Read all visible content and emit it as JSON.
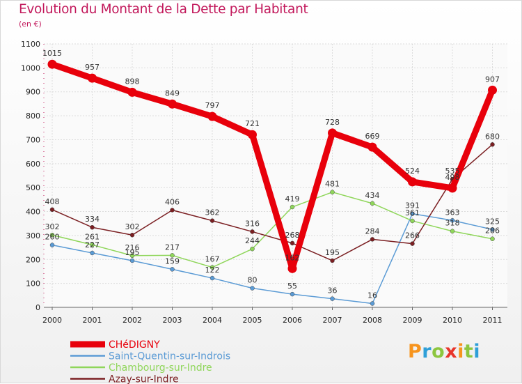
{
  "title": "Evolution du Montant de la Dette par Habitant",
  "subtitle": "(en €)",
  "brand": {
    "text": "Proxiti",
    "letter_colors": [
      "#f7941d",
      "#2e9fd8",
      "#8dc63f",
      "#e8352b",
      "#f7941d",
      "#8dc63f",
      "#2e9fd8"
    ]
  },
  "chart_data": {
    "type": "line",
    "title": "Evolution du Montant de la Dette par Habitant",
    "ylabel": "(en €)",
    "ylim": [
      0,
      1100
    ],
    "yticks": [
      0,
      100,
      200,
      300,
      400,
      500,
      600,
      700,
      800,
      900,
      1000,
      1100
    ],
    "x": [
      "2000",
      "2001",
      "2002",
      "2003",
      "2004",
      "2005",
      "2006",
      "2007",
      "2008",
      "2009",
      "2010",
      "2011"
    ],
    "grid": true,
    "legend_position": "bottom-left",
    "series": [
      {
        "name": "CHéDIGNY",
        "color": "#e8000b",
        "emphasis": true,
        "values": [
          1015,
          957,
          898,
          849,
          797,
          721,
          162,
          728,
          669,
          524,
          498,
          907
        ],
        "labels": [
          "1015",
          "957",
          "898",
          "849",
          "797",
          "721",
          "162",
          "728",
          "669",
          "524",
          "498",
          "907"
        ]
      },
      {
        "name": "Saint-Quentin-sur-Indrois",
        "color": "#5b9bd5",
        "values": [
          260,
          227,
          195,
          159,
          122,
          80,
          55,
          36,
          16,
          391,
          363,
          325
        ],
        "labels": [
          "260",
          "227",
          "195",
          "159",
          "122",
          "80",
          "55",
          "36",
          "16",
          "391",
          "363",
          "325"
        ]
      },
      {
        "name": "Chambourg-sur-Indre",
        "color": "#8fd65a",
        "values": [
          302,
          261,
          216,
          217,
          167,
          244,
          419,
          481,
          434,
          361,
          318,
          286
        ],
        "labels": [
          "302",
          "261",
          "216",
          "217",
          "167",
          "244",
          "419",
          "481",
          "434",
          "361",
          "318",
          "286"
        ]
      },
      {
        "name": "Azay-sur-Indre",
        "color": "#7b1f22",
        "values": [
          408,
          334,
          302,
          406,
          362,
          316,
          268,
          195,
          284,
          266,
          535,
          680
        ],
        "labels": [
          "408",
          "334",
          "302",
          "406",
          "362",
          "316",
          "268",
          "195",
          "284",
          "266",
          "535",
          "680"
        ]
      }
    ]
  }
}
